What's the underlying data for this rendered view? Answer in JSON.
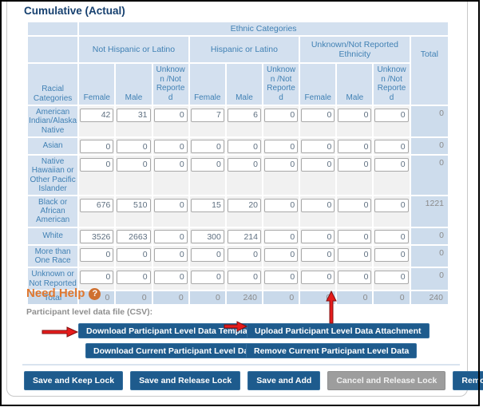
{
  "page": {
    "title": "Cumulative (Actual)"
  },
  "table": {
    "ethnic_categories_header": "Ethnic Categories",
    "racial_categories_header": "Racial Categories",
    "total_header": "Total",
    "ethnic_groups": [
      "Not Hispanic or Latino",
      "Hispanic or Latino",
      "Unknown/Not Reported Ethnicity"
    ],
    "sub_columns": [
      "Female",
      "Male",
      "Unknown /Not Reported"
    ],
    "rows": [
      {
        "label": "American Indian/Alaska Native",
        "values": [
          "42",
          "31",
          "0",
          "7",
          "6",
          "0",
          "0",
          "0",
          "0"
        ],
        "total": "0"
      },
      {
        "label": "Asian",
        "values": [
          "0",
          "0",
          "0",
          "0",
          "0",
          "0",
          "0",
          "0",
          "0"
        ],
        "total": "0"
      },
      {
        "label": "Native Hawaiian or Other Pacific Islander",
        "values": [
          "0",
          "0",
          "0",
          "0",
          "0",
          "0",
          "0",
          "0",
          "0"
        ],
        "total": "0"
      },
      {
        "label": "Black or African American",
        "values": [
          "676",
          "510",
          "0",
          "15",
          "20",
          "0",
          "0",
          "0",
          "0"
        ],
        "total": "1221"
      },
      {
        "label": "White",
        "values": [
          "3526",
          "2663",
          "0",
          "300",
          "214",
          "0",
          "0",
          "0",
          "0"
        ],
        "total": "0"
      },
      {
        "label": "More than One Race",
        "values": [
          "0",
          "0",
          "0",
          "0",
          "0",
          "0",
          "0",
          "0",
          "0"
        ],
        "total": "0"
      },
      {
        "label": "Unknown or Not Reported",
        "values": [
          "0",
          "0",
          "0",
          "0",
          "0",
          "0",
          "0",
          "0",
          "0"
        ],
        "total": "0"
      }
    ],
    "total_row": {
      "label": "Total",
      "values": [
        "0",
        "0",
        "0",
        "0",
        "240",
        "0",
        "0",
        "0",
        "0"
      ],
      "total": "240"
    }
  },
  "need_help": {
    "title": "Need Help",
    "help_icon": "question-mark-icon",
    "help_icon_glyph": "?",
    "csv_label": "Participant level data file (CSV):"
  },
  "file_buttons": {
    "download_template": "Download Participant Level Data Template",
    "upload_attachment": "Upload Participant Level Data Attachment",
    "download_current": "Download Current Participant Level Data",
    "remove_current": "Remove Current Participant Level Data"
  },
  "action_buttons": [
    {
      "label": "Save and Keep Lock",
      "style": "primary"
    },
    {
      "label": "Save and Release Lock",
      "style": "primary"
    },
    {
      "label": "Save and Add",
      "style": "primary"
    },
    {
      "label": "Cancel and Release Lock",
      "style": "disabled"
    },
    {
      "label": "Remove Report",
      "style": "primary"
    }
  ],
  "colors": {
    "button_blue": "#1e5b8d",
    "disabled_gray": "#9d9d9d",
    "cell_blue": "#d3e0ef",
    "total_cell_blue": "#c9d9ea",
    "header_text_blue": "#4181b4",
    "title_navy": "#16406f",
    "need_help_orange": "#e0772e",
    "arrow_red": "#e51c1c"
  }
}
